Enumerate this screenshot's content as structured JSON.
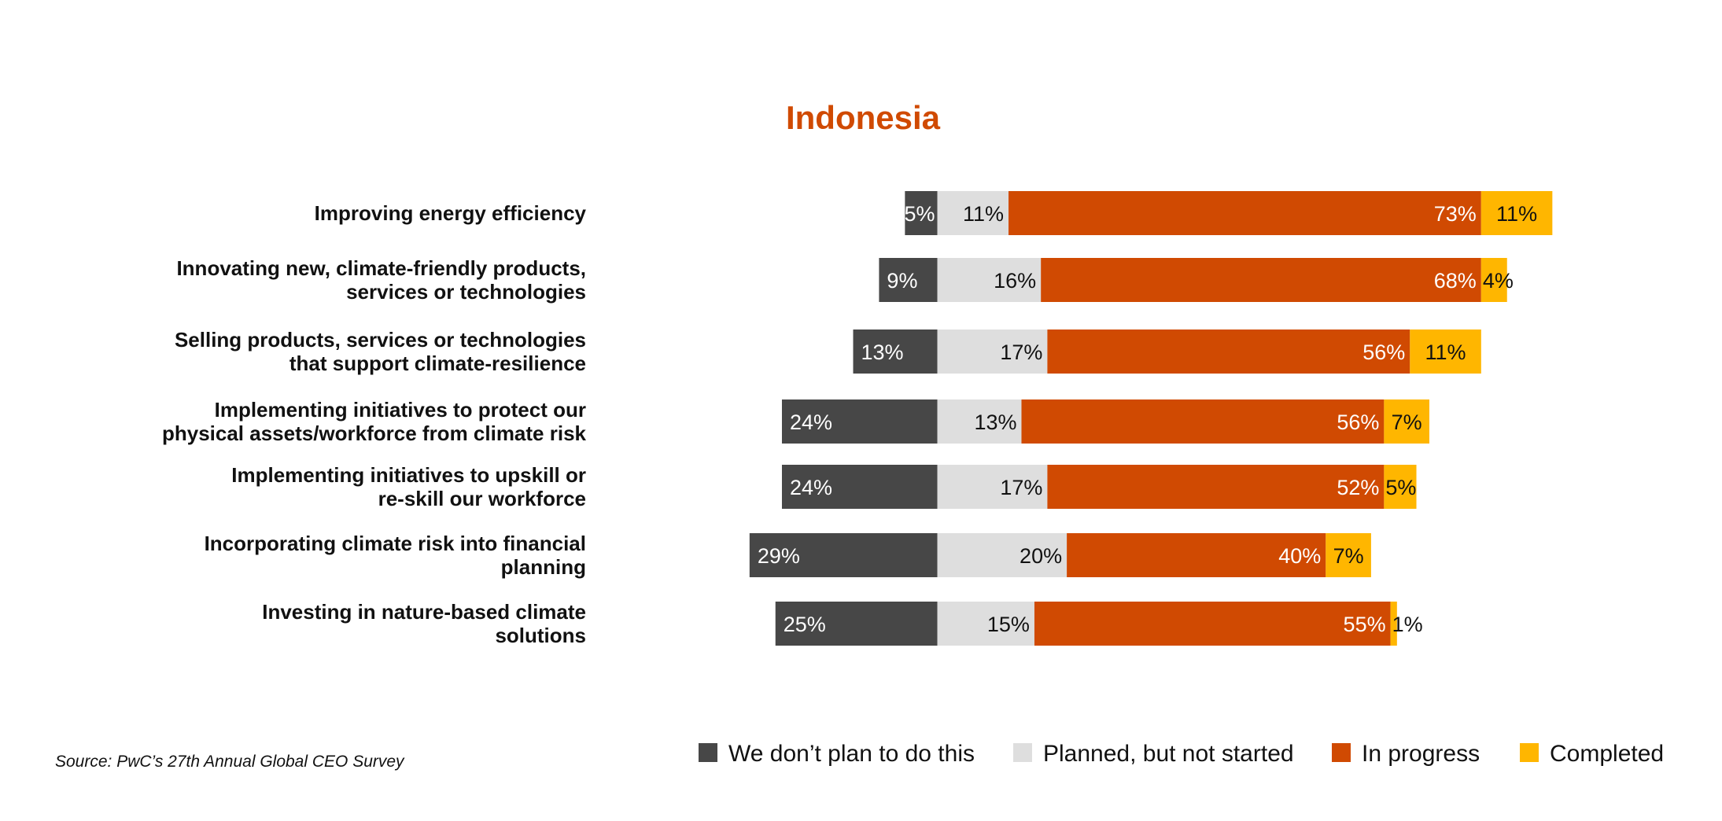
{
  "chart_data": {
    "type": "bar",
    "orientation": "horizontal-diverging-stacked",
    "title": "Indonesia",
    "categories": [
      [
        "Improving energy efficiency"
      ],
      [
        "Innovating new, climate-friendly products,",
        "services or technologies"
      ],
      [
        "Selling products, services or technologies",
        "that support climate-resilience"
      ],
      [
        "Implementing initiatives to protect our",
        "physical assets/workforce from climate risk"
      ],
      [
        "Implementing initiatives to upskill or",
        "re-skill our workforce"
      ],
      [
        "Incorporating climate risk into financial",
        "planning"
      ],
      [
        "Investing in nature-based climate",
        "solutions"
      ]
    ],
    "series": [
      {
        "name": "We don’t plan to do this",
        "color": "#474747",
        "label_color": "#ffffff",
        "values": [
          5,
          9,
          13,
          24,
          24,
          29,
          25
        ]
      },
      {
        "name": "Planned, but not started",
        "color": "#dedede",
        "label_color": "#111111",
        "values": [
          11,
          16,
          17,
          13,
          17,
          20,
          15
        ]
      },
      {
        "name": "In progress",
        "color": "#d04a02",
        "label_color": "#ffffff",
        "values": [
          73,
          68,
          56,
          56,
          52,
          40,
          55
        ]
      },
      {
        "name": "Completed",
        "color": "#ffb600",
        "label_color": "#111111",
        "values": [
          11,
          4,
          11,
          7,
          5,
          7,
          1
        ]
      }
    ],
    "value_suffix": "%",
    "grid": false,
    "legend_position": "bottom-right"
  },
  "colors": {
    "title": "#d04a02"
  },
  "source": "Source: PwC’s 27th Annual Global CEO Survey"
}
